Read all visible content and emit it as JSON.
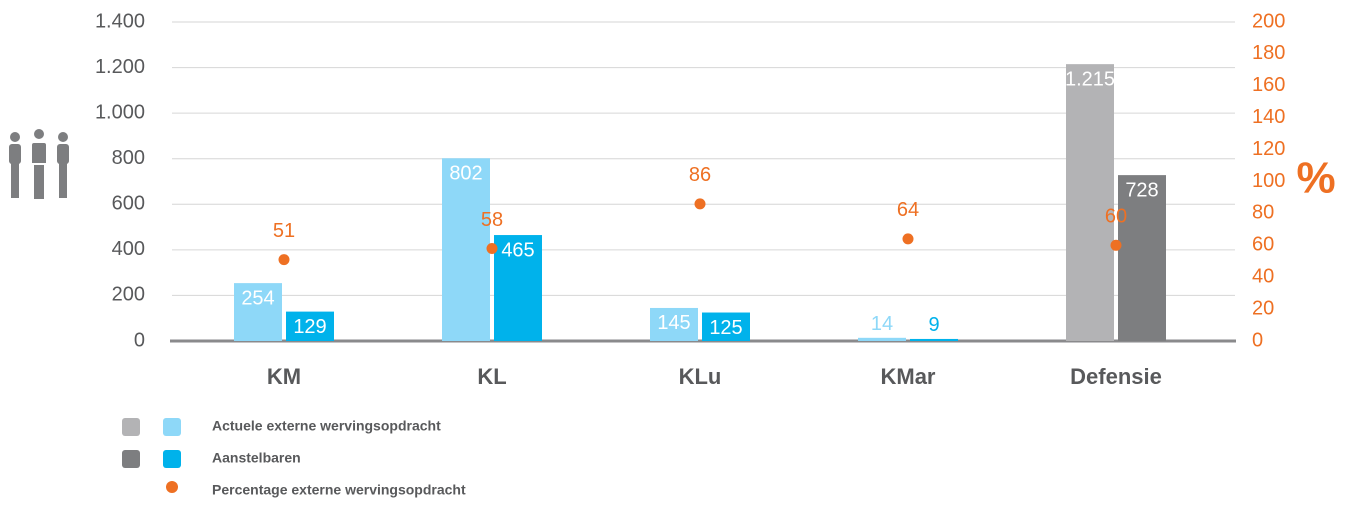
{
  "chart_data": {
    "type": "bar",
    "y2_label": "%",
    "categories": [
      "KM",
      "KL",
      "KLu",
      "KMar",
      "Defensie"
    ],
    "series": [
      {
        "name": "Actuele externe wervingsopdracht",
        "type": "bar",
        "colors": [
          "#8ed8f8",
          "#8ed8f8",
          "#8ed8f8",
          "#8ed8f8",
          "#b3b3b5"
        ],
        "values": [
          254,
          802,
          145,
          14,
          1215
        ],
        "value_labels": [
          "254",
          "802",
          "145",
          "14",
          "1.215"
        ]
      },
      {
        "name": "Aanstelbaren",
        "type": "bar",
        "colors": [
          "#00b2eb",
          "#00b2eb",
          "#00b2eb",
          "#00b2eb",
          "#7d7e80"
        ],
        "values": [
          129,
          465,
          125,
          9,
          728
        ]
      },
      {
        "name": "Percentage externe wervingsopdracht",
        "type": "scatter",
        "axis": "y2",
        "color": "#ee7023",
        "values": [
          51,
          58,
          86,
          64,
          60
        ]
      }
    ],
    "ylim": [
      0,
      1400
    ],
    "yticks": [
      0,
      200,
      400,
      600,
      800,
      {
        "value": 1000,
        "label": "1.000"
      },
      {
        "value": 1200,
        "label": "1.200"
      },
      {
        "value": 1400,
        "label": "1.400"
      }
    ],
    "y2lim": [
      0,
      200
    ],
    "y2ticks": [
      0,
      20,
      40,
      60,
      80,
      100,
      120,
      140,
      160,
      180,
      200
    ],
    "grid": true
  }
}
